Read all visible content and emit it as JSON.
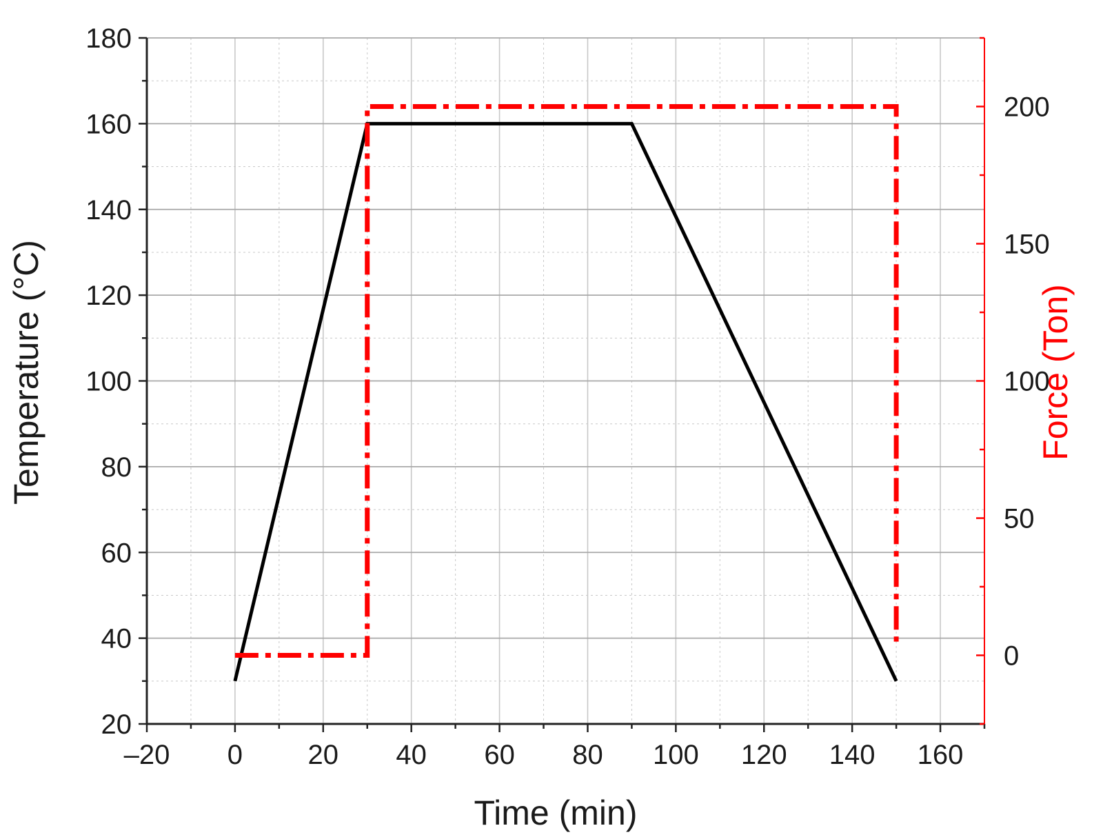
{
  "chart_data": {
    "type": "line",
    "title": "",
    "xlabel": "Time (min)",
    "ylabel": "Temperature (°C)",
    "y2label": "Force (Ton)",
    "xlim": [
      -20,
      170
    ],
    "ylim": [
      20,
      180
    ],
    "y2lim": [
      -25,
      225
    ],
    "xticks": [
      -20,
      0,
      20,
      40,
      60,
      80,
      100,
      120,
      140,
      160
    ],
    "xtick_labels": [
      "–20",
      "0",
      "20",
      "40",
      "60",
      "80",
      "100",
      "120",
      "140",
      "160"
    ],
    "yticks": [
      20,
      40,
      60,
      80,
      100,
      120,
      140,
      160,
      180
    ],
    "y2ticks": [
      0,
      50,
      100,
      150,
      200
    ],
    "grid": true,
    "series": [
      {
        "axis": "left",
        "color": "#000000",
        "style": "solid",
        "x": [
          0,
          30,
          90,
          150
        ],
        "y": [
          30,
          160,
          160,
          30
        ]
      },
      {
        "axis": "right",
        "color": "#ff0000",
        "style": "dash-dot",
        "x": [
          0,
          30,
          30,
          150,
          150
        ],
        "y": [
          0,
          0,
          200,
          200,
          5
        ]
      }
    ],
    "colors": {
      "left_axis": "#000000",
      "right_axis": "#ff0000",
      "grid": "#c8c8c8"
    }
  }
}
